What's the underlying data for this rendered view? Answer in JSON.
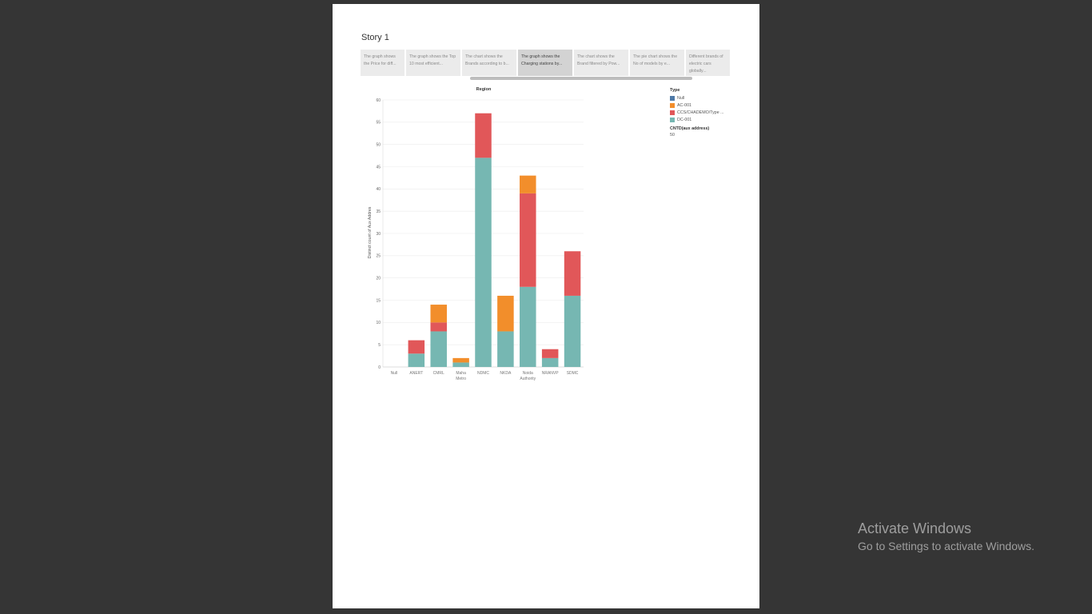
{
  "story": {
    "title": "Story 1",
    "points": [
      {
        "text": "The graph shows the Price for diff...",
        "active": false
      },
      {
        "text": "The graph shows the Top 10 most efficient...",
        "active": false
      },
      {
        "text": "The chart shows the Brands according to b...",
        "active": false
      },
      {
        "text": "The graph shows the Charging stations by...",
        "active": true
      },
      {
        "text": "The chart shows the Brand filtered by Pow...",
        "active": false
      },
      {
        "text": "The pie chart shows the No of models by e...",
        "active": false
      },
      {
        "text": "Different brands of electric cars globally...",
        "active": false
      }
    ]
  },
  "legend": {
    "title": "Type",
    "items": [
      {
        "label": "Null",
        "color": "#4e79a7"
      },
      {
        "label": "AC-001",
        "color": "#f28e2b"
      },
      {
        "label": "CCS/CHADEMO/Type ...",
        "color": "#e15759"
      },
      {
        "label": "DC-001",
        "color": "#76b7b2"
      }
    ],
    "size_title": "CNTD(aux address)",
    "size_value": "50"
  },
  "chart_data": {
    "type": "bar",
    "stacked": true,
    "title": "Region",
    "ylabel": "Distinct count of Aux Addres",
    "xlabel": "",
    "ylim": [
      0,
      60
    ],
    "yticks": [
      0,
      5,
      10,
      15,
      20,
      25,
      30,
      35,
      40,
      45,
      50,
      55,
      60
    ],
    "grid": true,
    "legend_position": "right",
    "categories": [
      "Null",
      "ANERT",
      "CMRL",
      "Maha Metro",
      "NDMC",
      "NKDA",
      "Noida Authority",
      "NRANVP",
      "SDMC"
    ],
    "series": [
      {
        "name": "DC-001",
        "color": "#76b7b2",
        "values": [
          0,
          3,
          8,
          1,
          47,
          8,
          18,
          2,
          16
        ]
      },
      {
        "name": "CCS/CHADEMO/Type ...",
        "color": "#e15759",
        "values": [
          0,
          3,
          2,
          0,
          10,
          0,
          21,
          2,
          10
        ]
      },
      {
        "name": "AC-001",
        "color": "#f28e2b",
        "values": [
          0,
          0,
          4,
          1,
          0,
          8,
          4,
          0,
          0
        ]
      }
    ]
  },
  "watermark": {
    "title": "Activate Windows",
    "subtitle": "Go to Settings to activate Windows."
  }
}
